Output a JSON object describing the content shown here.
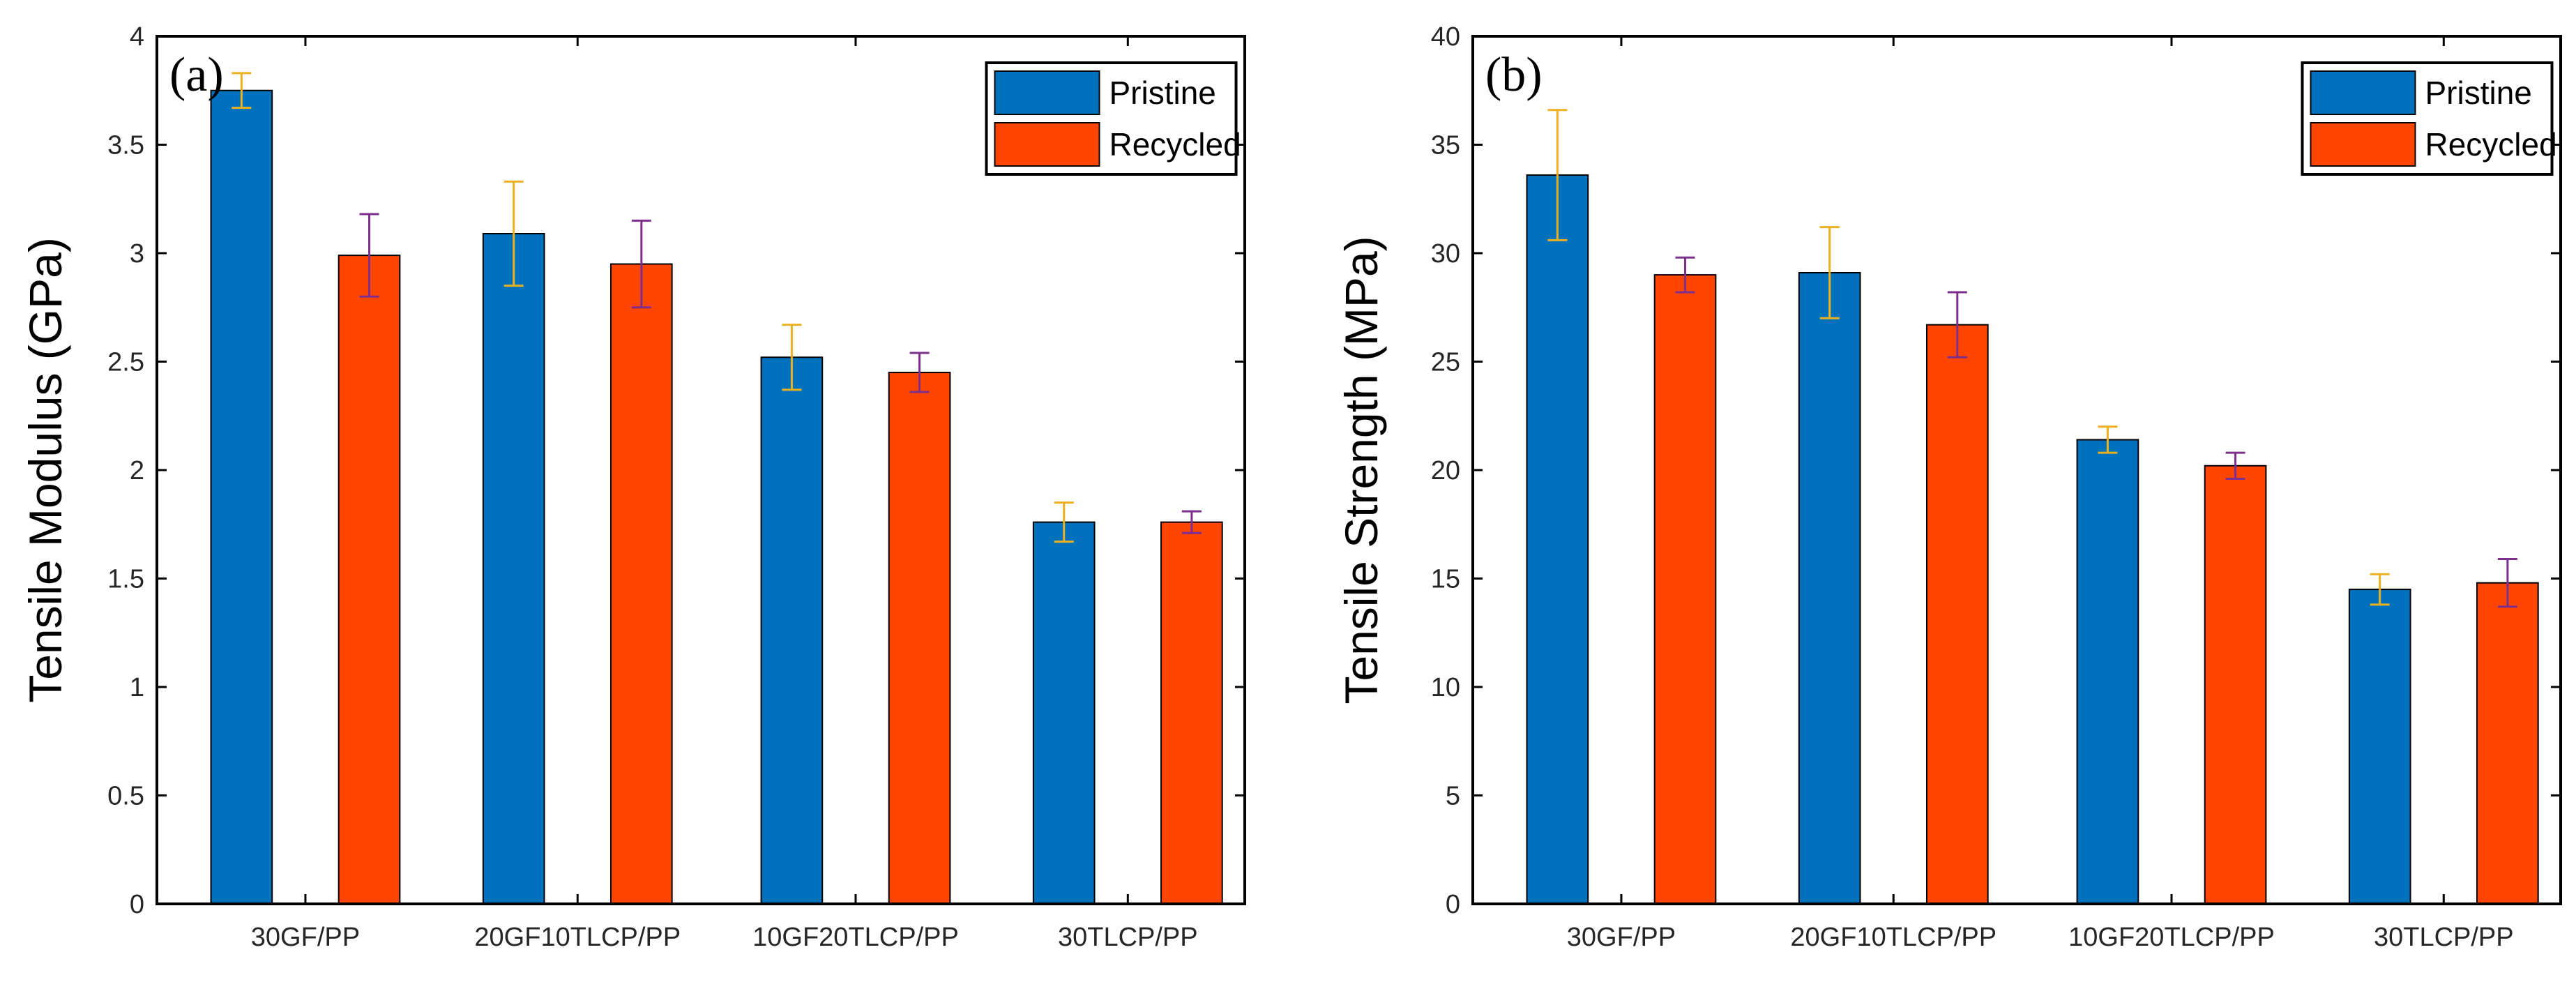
{
  "colors": {
    "pristine": "#0072BD",
    "recycled": "#FF4500",
    "error_pristine": "#EDB120",
    "error_recycled": "#7E2F8E"
  },
  "chart_data": [
    {
      "type": "bar",
      "panel_label": "(a)",
      "categories": [
        "30GF/PP",
        "20GF10TLCP/PP",
        "10GF20TLCP/PP",
        "30TLCP/PP"
      ],
      "ylabel": "Tensile Modulus (GPa)",
      "ylim": [
        0,
        4
      ],
      "yticks": [
        0,
        0.5,
        1,
        1.5,
        2,
        2.5,
        3,
        3.5,
        4
      ],
      "ytick_labels": [
        "0",
        "0.5",
        "1",
        "1.5",
        "2",
        "2.5",
        "3",
        "3.5",
        "4"
      ],
      "legend_position": "top-right",
      "series": [
        {
          "name": "Pristine",
          "values": [
            3.75,
            3.09,
            2.52,
            1.76
          ],
          "errors": [
            0.08,
            0.24,
            0.15,
            0.09
          ]
        },
        {
          "name": "Recycled",
          "values": [
            2.99,
            2.95,
            2.45,
            1.76
          ],
          "errors": [
            0.19,
            0.2,
            0.09,
            0.05
          ]
        }
      ]
    },
    {
      "type": "bar",
      "panel_label": "(b)",
      "categories": [
        "30GF/PP",
        "20GF10TLCP/PP",
        "10GF20TLCP/PP",
        "30TLCP/PP"
      ],
      "ylabel": "Tensile Strength (MPa)",
      "ylim": [
        0,
        40
      ],
      "yticks": [
        0,
        5,
        10,
        15,
        20,
        25,
        30,
        35,
        40
      ],
      "ytick_labels": [
        "0",
        "5",
        "10",
        "15",
        "20",
        "25",
        "30",
        "35",
        "40"
      ],
      "legend_position": "top-right",
      "series": [
        {
          "name": "Pristine",
          "values": [
            33.6,
            29.1,
            21.4,
            14.5
          ],
          "errors": [
            3.0,
            2.1,
            0.6,
            0.7
          ]
        },
        {
          "name": "Recycled",
          "values": [
            29.0,
            26.7,
            20.2,
            14.8
          ],
          "errors": [
            0.8,
            1.5,
            0.6,
            1.1
          ]
        }
      ]
    }
  ]
}
